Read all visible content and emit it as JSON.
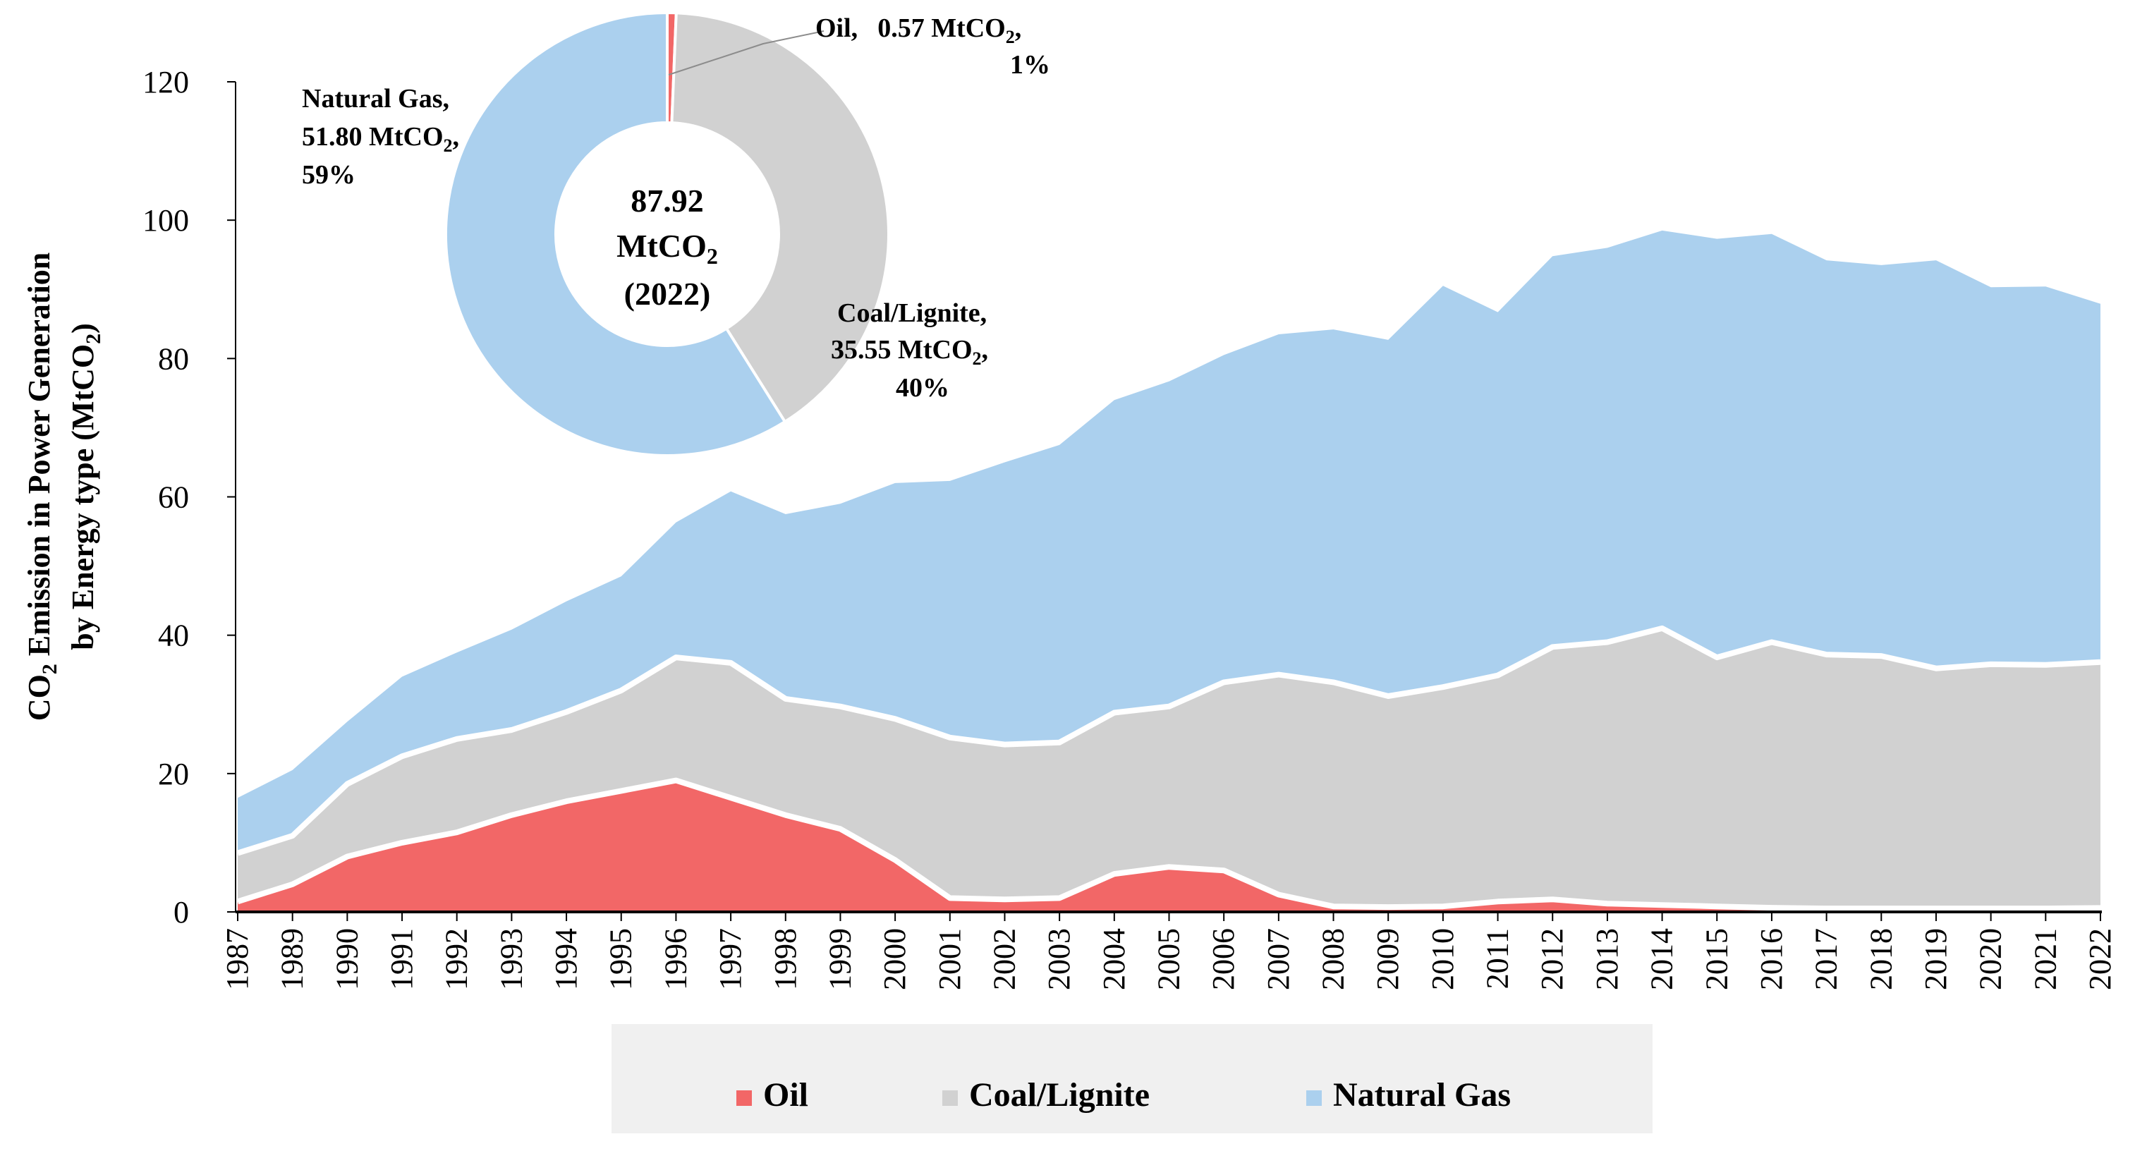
{
  "chart_data": [
    {
      "type": "area",
      "stacked": true,
      "ylabel_line1": "CO",
      "ylabel_line1_sub": "2",
      "ylabel_line1_rest": " Emission in Power Generation",
      "ylabel_line2": "by Energy type (MtCO",
      "ylabel_line2_sub": "2",
      "ylabel_line2_rest": ")",
      "ylim": [
        0,
        120
      ],
      "yticks": [
        "0",
        "20",
        "40",
        "60",
        "80",
        "100",
        "120"
      ],
      "x": [
        "1987",
        "1989",
        "1990",
        "1991",
        "1992",
        "1993",
        "1994",
        "1995",
        "1996",
        "1997",
        "1998",
        "1999",
        "2000",
        "2001",
        "2002",
        "2003",
        "2004",
        "2005",
        "2006",
        "2007",
        "2008",
        "2009",
        "2010",
        "2011",
        "2012",
        "2013",
        "2014",
        "2015",
        "2016",
        "2017",
        "2018",
        "2019",
        "2020",
        "2021",
        "2022"
      ],
      "series": [
        {
          "name": "Oil",
          "color": "#f26767",
          "values": [
            1.5,
            4,
            8,
            10,
            11.5,
            14,
            16,
            17.5,
            19,
            16.5,
            14,
            12,
            7.5,
            2,
            1.8,
            2,
            5.5,
            6.5,
            6,
            2.5,
            0.8,
            0.7,
            0.8,
            1.5,
            1.8,
            1.2,
            1,
            0.8,
            0.6,
            0.5,
            0.5,
            0.5,
            0.5,
            0.5,
            0.57
          ]
        },
        {
          "name": "Coal/Lignite",
          "color": "#d1d1d1",
          "values": [
            7,
            7,
            10.5,
            12.5,
            13.5,
            12.3,
            12.9,
            14.5,
            17.8,
            19.5,
            16.8,
            17.7,
            20.4,
            23.2,
            22.4,
            22.5,
            23.3,
            23.2,
            27.2,
            31.8,
            32.4,
            30.5,
            31.7,
            32.7,
            36.5,
            37.8,
            40,
            36,
            38.4,
            36.7,
            36.5,
            34.7,
            35.3,
            35.2,
            35.55
          ]
        },
        {
          "name": "Natural Gas",
          "color": "#abd0ee",
          "values": [
            8,
            9.5,
            9,
            11.5,
            12.5,
            14.5,
            16,
            16.5,
            19.5,
            24.8,
            26.7,
            29.3,
            34.1,
            37.1,
            40.8,
            43,
            45.2,
            47,
            47.3,
            49.2,
            51,
            51.5,
            58,
            52.5,
            56.5,
            57,
            57.5,
            60.5,
            59,
            57,
            56.5,
            59,
            54.5,
            54.7,
            51.8
          ]
        }
      ],
      "legend": [
        "Oil",
        "Coal/Lignite",
        "Natural Gas"
      ],
      "legend_position": "bottom"
    },
    {
      "type": "pie",
      "style": "donut",
      "center_label_line1": "87.92",
      "center_label_line2": "MtCO",
      "center_label_line2_sub": "2",
      "center_label_line3": "(2022)",
      "slices": [
        {
          "name": "Oil",
          "value": 0.57,
          "percent": "1%",
          "label_name": "Oil,",
          "label_value": "0.57 MtCO",
          "label_sub": "2",
          "label_tail": ",",
          "color": "#f26767",
          "percent_color": "#e8141b"
        },
        {
          "name": "Coal/Lignite",
          "value": 35.55,
          "percent": "40%",
          "label_name": "Coal/Lignite,",
          "label_value": "35.55 MtCO",
          "label_sub": "2",
          "label_tail": ",",
          "color": "#d1d1d1",
          "percent_color": "#8c8c8c"
        },
        {
          "name": "Natural Gas",
          "value": 51.8,
          "percent": "59%",
          "label_name": "Natural Gas,",
          "label_value": "51.80 MtCO",
          "label_sub": "2",
          "label_tail": ",",
          "color": "#abd0ee",
          "percent_color": "#1f7fc4"
        }
      ]
    }
  ]
}
